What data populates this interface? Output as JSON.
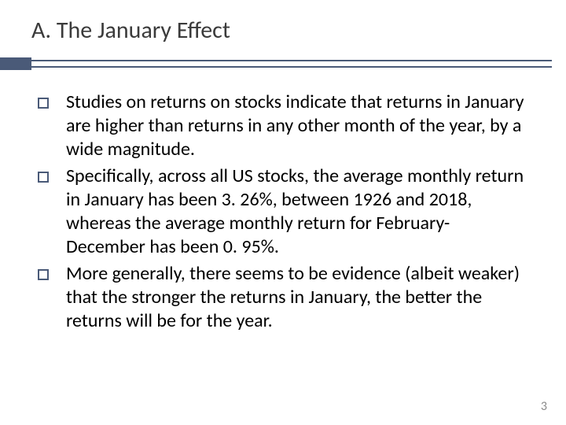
{
  "slide": {
    "title": "A. The January Effect",
    "title_fontsize": 30,
    "title_color": "#3b3b3b",
    "accent_color": "#4a5a78",
    "background_color": "#ffffff",
    "body_fontsize": 24,
    "body_color": "#000000",
    "bullets": [
      {
        "text": "Studies on returns on stocks indicate that returns in January are higher than returns in any other month of the year, by a wide magnitude."
      },
      {
        "text": "Specifically, across all US stocks, the average monthly return in January has been 3. 26%, between 1926 and 2018, whereas the average monthly return for February-December has been 0. 95%."
      },
      {
        "text": "More generally, there seems to be evidence (albeit weaker) that the stronger the returns in January, the better the returns will be for the year."
      }
    ],
    "page_number": "3",
    "page_number_color": "#8a8a8a"
  }
}
